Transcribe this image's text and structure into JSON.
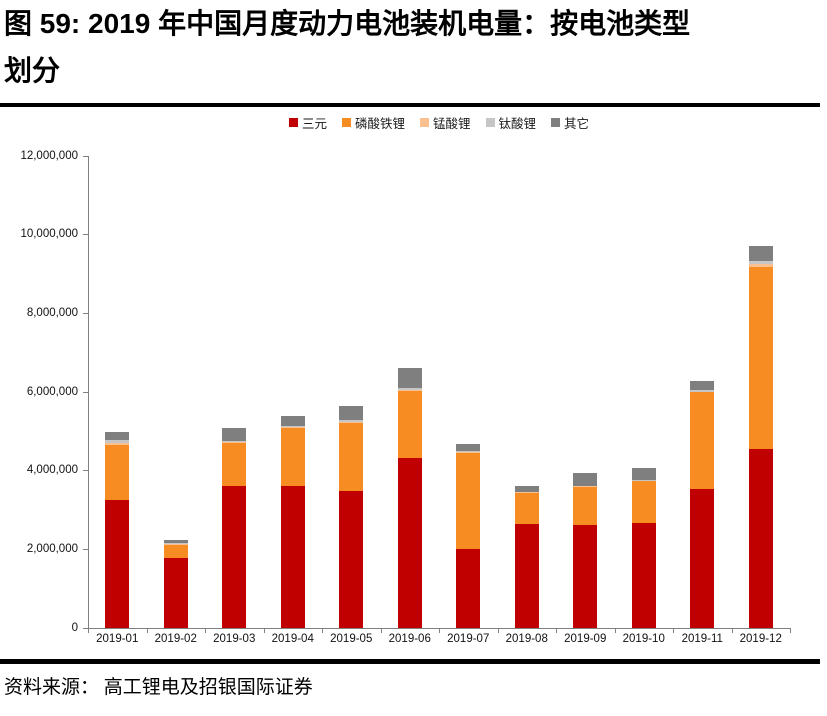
{
  "title": {
    "line1": "图 59: 2019 年中国月度动力电池装机电量：按电池类型",
    "line2": "划分"
  },
  "source": "资料来源： 高工锂电及招银国际证券",
  "chart_data": {
    "type": "bar",
    "stacked": true,
    "title": "2019 年中国月度动力电池装机电量：按电池类型划分",
    "xlabel": "",
    "ylabel": "",
    "categories": [
      "2019-01",
      "2019-02",
      "2019-03",
      "2019-04",
      "2019-05",
      "2019-06",
      "2019-07",
      "2019-08",
      "2019-09",
      "2019-10",
      "2019-11",
      "2019-12"
    ],
    "series": [
      {
        "name": "三元",
        "color": "#C00000",
        "values": [
          3250000,
          1780000,
          3620000,
          3600000,
          3480000,
          4320000,
          2010000,
          2650000,
          2620000,
          2670000,
          3530000,
          4550000
        ]
      },
      {
        "name": "磷酸铁锂",
        "color": "#F68C22",
        "values": [
          1400000,
          330000,
          1080000,
          1480000,
          1720000,
          1700000,
          2440000,
          780000,
          960000,
          1060000,
          2460000,
          4640000
        ]
      },
      {
        "name": "锰酸锂",
        "color": "#FAC090",
        "values": [
          60000,
          20000,
          30000,
          30000,
          50000,
          40000,
          20000,
          20000,
          20000,
          20000,
          20000,
          70000
        ]
      },
      {
        "name": "钛酸锂",
        "color": "#C6C6C6",
        "values": [
          70000,
          20000,
          30000,
          30000,
          50000,
          40000,
          20000,
          20000,
          20000,
          20000,
          30000,
          80000
        ]
      },
      {
        "name": "其它",
        "color": "#7F7F7F",
        "values": [
          200000,
          100000,
          330000,
          260000,
          350000,
          500000,
          190000,
          130000,
          320000,
          300000,
          250000,
          370000
        ]
      }
    ],
    "ylim": [
      0,
      12000000
    ],
    "ytick_step": 2000000,
    "grid": false,
    "legend_position": "top"
  }
}
